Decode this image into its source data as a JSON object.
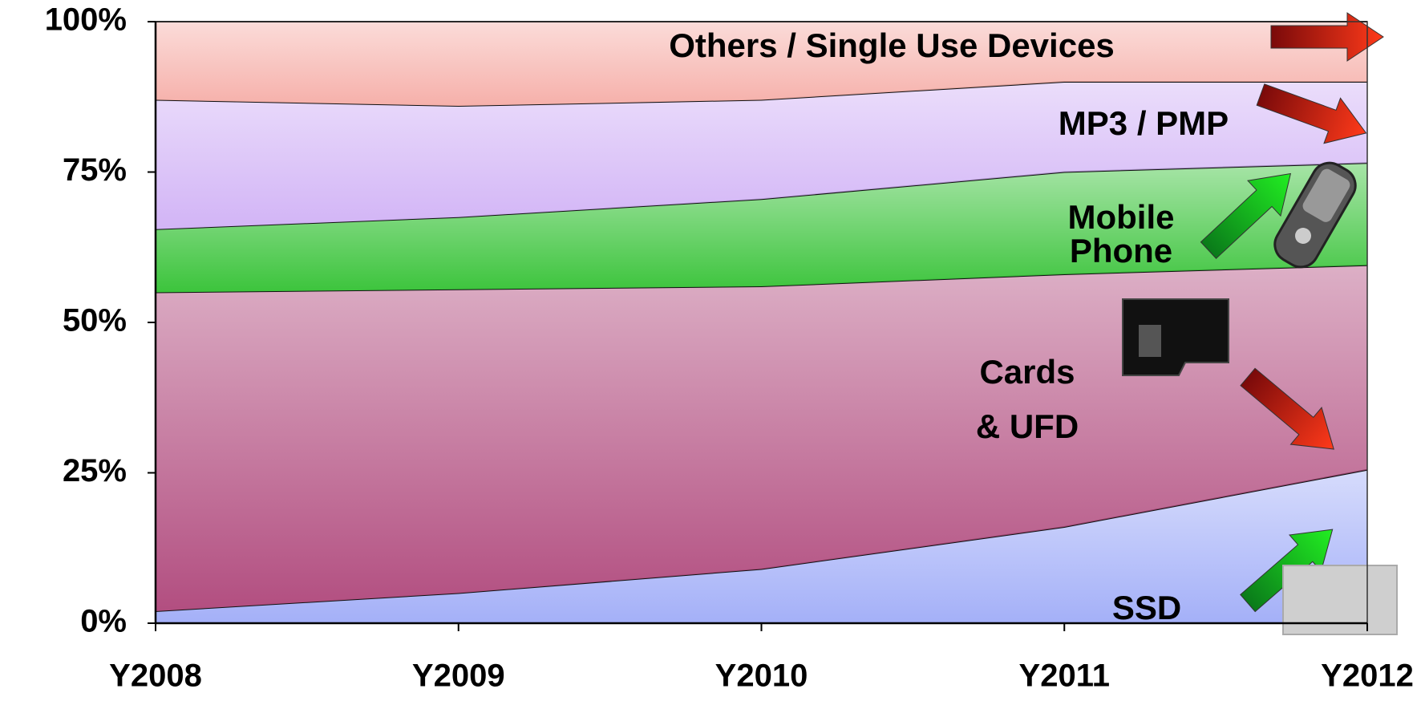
{
  "chart_data": {
    "type": "stacked_area",
    "categories": [
      "Y2008",
      "Y2009",
      "Y2010",
      "Y2011",
      "Y2012"
    ],
    "series": [
      {
        "name": "SSD",
        "color": "#a4b0f8",
        "values": [
          2,
          5,
          9,
          16,
          25.5
        ]
      },
      {
        "name": "Cards & UFD",
        "color": "#b24e80",
        "values": [
          53,
          50.5,
          47,
          42,
          34
        ]
      },
      {
        "name": "Mobile Phone",
        "color": "#3cc43c",
        "values": [
          10.5,
          12,
          14.5,
          17,
          17
        ]
      },
      {
        "name": "MP3 / PMP",
        "color": "#d2b4f6",
        "values": [
          21.5,
          18.5,
          16.5,
          15,
          13.5
        ]
      },
      {
        "name": "Others / Single Use Devices",
        "color": "#f6b0aa",
        "values": [
          13,
          14,
          13,
          10,
          10
        ]
      }
    ],
    "ylim": [
      0,
      100
    ],
    "yticks": [
      {
        "value": 0,
        "label": "0%"
      },
      {
        "value": 25,
        "label": "25%"
      },
      {
        "value": 50,
        "label": "50%"
      },
      {
        "value": 75,
        "label": "75%"
      },
      {
        "value": 100,
        "label": "100%"
      }
    ],
    "grid": false
  }
}
